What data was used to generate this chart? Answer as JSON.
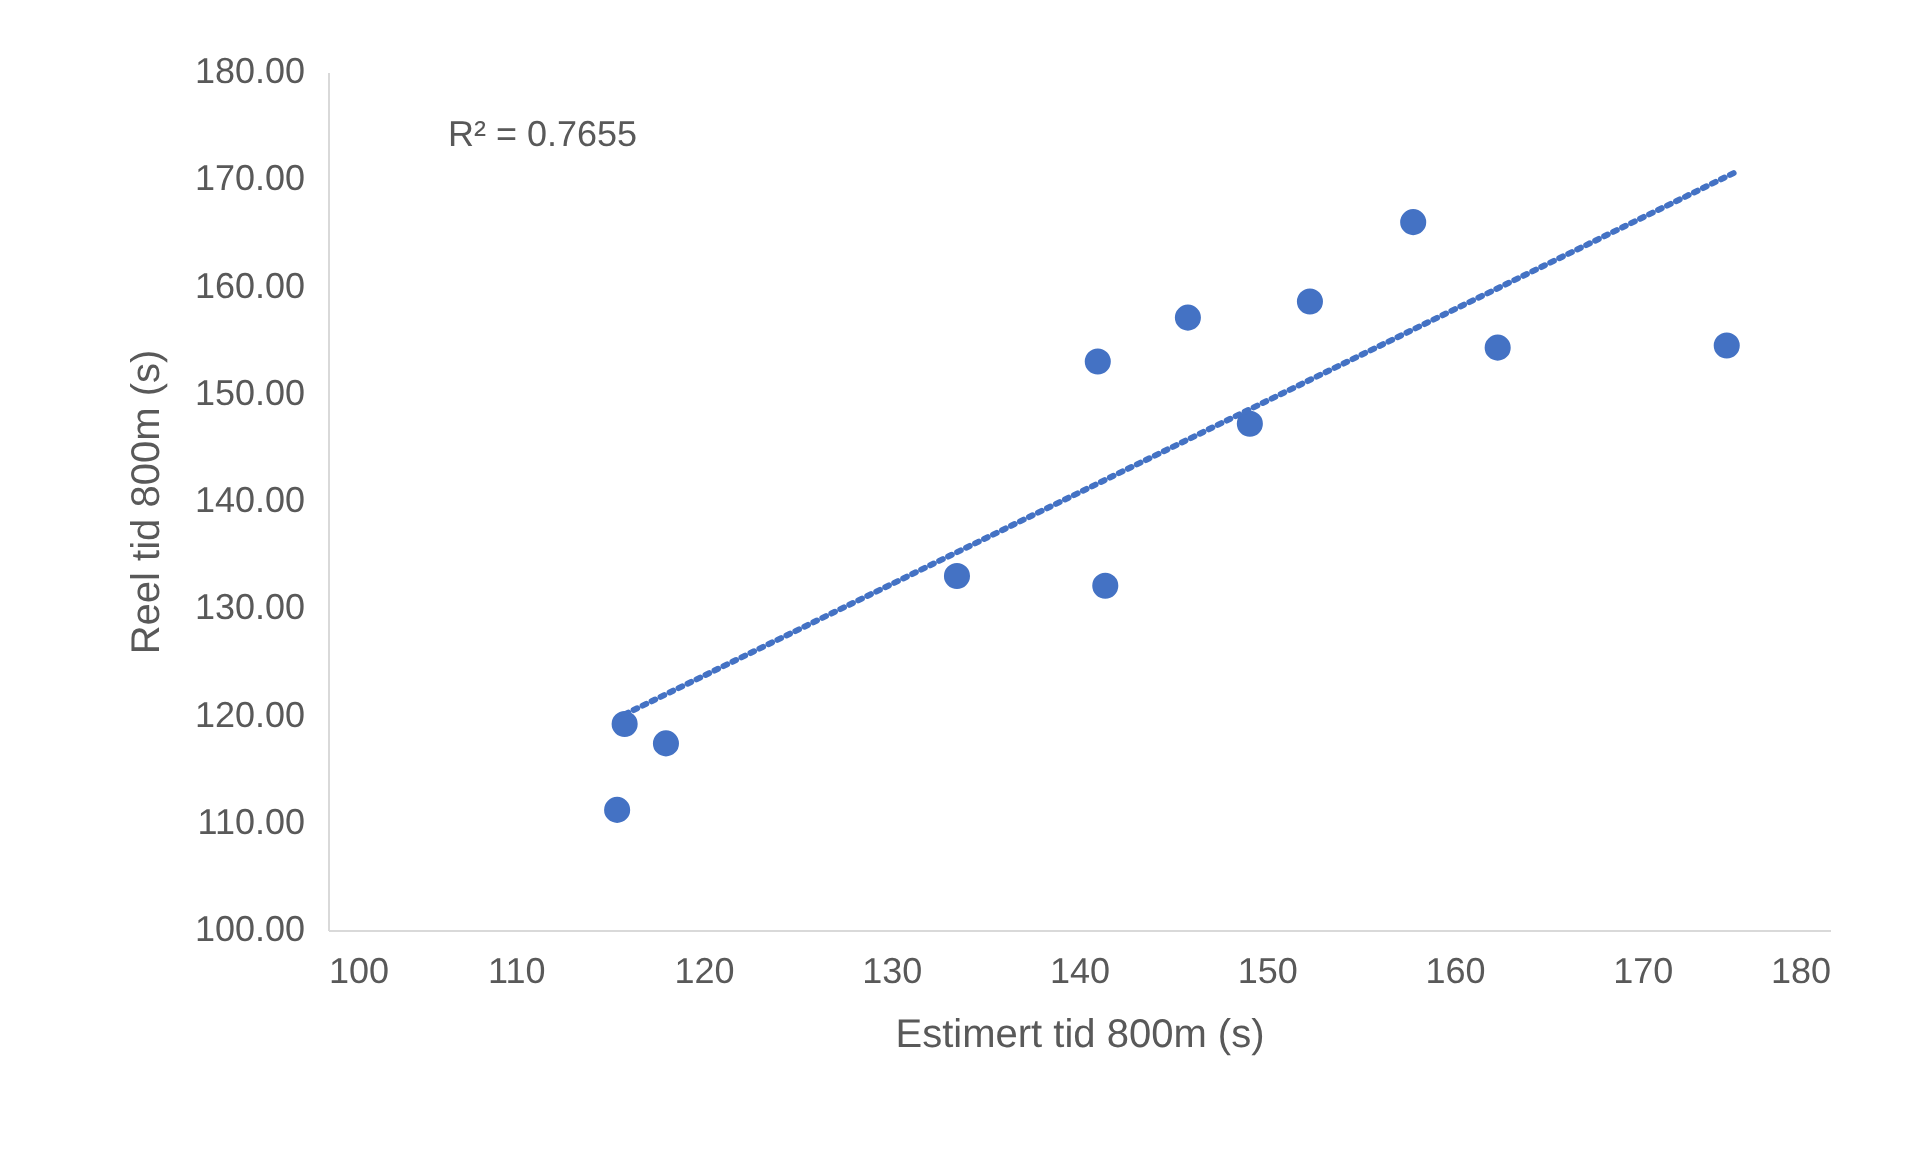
{
  "chart_data": {
    "type": "scatter",
    "xlabel": "Estimert tid 800m (s)",
    "ylabel": "Reel tid 800m (s)",
    "xlim": [
      100,
      180
    ],
    "xticks": [
      100,
      110,
      120,
      130,
      140,
      150,
      160,
      170,
      180
    ],
    "ylim": [
      100,
      180
    ],
    "yticks": [
      {
        "value": 100,
        "label": "100.00"
      },
      {
        "value": 110,
        "label": "110.00"
      },
      {
        "value": 120,
        "label": "120.00"
      },
      {
        "value": 130,
        "label": "130.00"
      },
      {
        "value": 140,
        "label": "140.00"
      },
      {
        "value": 150,
        "label": "150.00"
      },
      {
        "value": 160,
        "label": "160.00"
      },
      {
        "value": 170,
        "label": "170.00"
      },
      {
        "value": 180,
        "label": "180.00"
      }
    ],
    "grid": false,
    "marker": "circle",
    "annotations": [
      "R² = 0.7655"
    ],
    "series": [
      {
        "type": "scatter",
        "color": "#4472c4",
        "x": [
          115.4,
          115.8,
          118.0,
          133.5,
          141.0,
          141.4,
          145.8,
          149.1,
          152.3,
          157.8,
          162.3,
          174.5
        ],
        "values": [
          111.2,
          119.2,
          117.4,
          133.0,
          153.0,
          132.1,
          157.1,
          147.2,
          158.6,
          166.0,
          154.3,
          154.5
        ]
      },
      {
        "type": "line",
        "color": "#4472c4",
        "line_style": "dotted",
        "marker": "none",
        "x": [
          115.8,
          174.9
        ],
        "values": [
          120.1,
          170.6
        ]
      }
    ]
  }
}
